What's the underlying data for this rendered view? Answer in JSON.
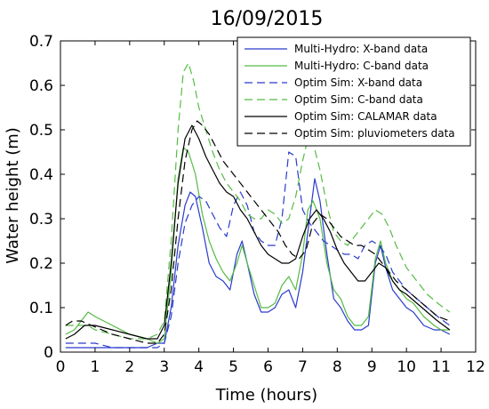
{
  "chart_data": {
    "type": "line",
    "title": "16/09/2015",
    "xlabel": "Time (hours)",
    "ylabel": "Water height (m)",
    "xlim": [
      0,
      12
    ],
    "ylim": [
      0,
      0.7
    ],
    "xticks": [
      "0",
      "1",
      "2",
      "3",
      "4",
      "5",
      "6",
      "7",
      "8",
      "9",
      "10",
      "11",
      "12"
    ],
    "yticks": [
      "0",
      "0.1",
      "0.2",
      "0.3",
      "0.4",
      "0.5",
      "0.6",
      "0.7"
    ],
    "grid": false,
    "legend_position": "top-right",
    "series": [
      {
        "name": "Multi-Hydro: X-band data",
        "color": "#2a3bcc",
        "dash": "solid",
        "x": [
          0.15,
          0.4,
          0.6,
          0.8,
          1.0,
          1.5,
          2.0,
          2.5,
          2.8,
          3.0,
          3.2,
          3.4,
          3.6,
          3.75,
          3.9,
          4.1,
          4.3,
          4.5,
          4.7,
          4.9,
          5.1,
          5.25,
          5.4,
          5.6,
          5.8,
          6.0,
          6.2,
          6.4,
          6.6,
          6.8,
          7.0,
          7.2,
          7.35,
          7.5,
          7.7,
          7.9,
          8.1,
          8.3,
          8.5,
          8.7,
          8.9,
          9.1,
          9.25,
          9.4,
          9.6,
          9.8,
          10.0,
          10.2,
          10.5,
          10.8,
          11.0,
          11.25
        ],
        "y": [
          0.01,
          0.01,
          0.01,
          0.01,
          0.01,
          0.01,
          0.01,
          0.01,
          0.02,
          0.02,
          0.1,
          0.24,
          0.33,
          0.36,
          0.35,
          0.28,
          0.2,
          0.17,
          0.16,
          0.14,
          0.22,
          0.25,
          0.2,
          0.13,
          0.09,
          0.09,
          0.1,
          0.13,
          0.14,
          0.1,
          0.18,
          0.3,
          0.39,
          0.34,
          0.22,
          0.12,
          0.1,
          0.07,
          0.05,
          0.05,
          0.06,
          0.2,
          0.24,
          0.19,
          0.14,
          0.12,
          0.1,
          0.09,
          0.06,
          0.05,
          0.05,
          0.04
        ]
      },
      {
        "name": "Multi-Hydro: C-band data",
        "color": "#55bb44",
        "dash": "solid",
        "x": [
          0.15,
          0.4,
          0.6,
          0.8,
          1.0,
          1.5,
          2.0,
          2.5,
          2.8,
          3.0,
          3.2,
          3.4,
          3.55,
          3.7,
          3.9,
          4.1,
          4.3,
          4.5,
          4.7,
          4.9,
          5.1,
          5.25,
          5.4,
          5.6,
          5.8,
          6.0,
          6.2,
          6.4,
          6.6,
          6.8,
          7.0,
          7.15,
          7.3,
          7.5,
          7.7,
          7.9,
          8.1,
          8.3,
          8.5,
          8.7,
          8.9,
          9.1,
          9.25,
          9.4,
          9.6,
          9.8,
          10.0,
          10.2,
          10.5,
          10.8,
          11.0,
          11.25
        ],
        "y": [
          0.04,
          0.05,
          0.07,
          0.09,
          0.08,
          0.06,
          0.04,
          0.03,
          0.02,
          0.03,
          0.18,
          0.39,
          0.46,
          0.45,
          0.4,
          0.31,
          0.25,
          0.21,
          0.18,
          0.16,
          0.2,
          0.24,
          0.2,
          0.15,
          0.1,
          0.1,
          0.11,
          0.15,
          0.17,
          0.14,
          0.22,
          0.32,
          0.34,
          0.3,
          0.2,
          0.14,
          0.12,
          0.08,
          0.06,
          0.06,
          0.08,
          0.21,
          0.25,
          0.2,
          0.16,
          0.14,
          0.12,
          0.11,
          0.08,
          0.06,
          0.05,
          0.05
        ]
      },
      {
        "name": "Optim Sim: X-band data",
        "color": "#2a3bcc",
        "dash": "dashed",
        "x": [
          0.15,
          0.4,
          0.8,
          1.0,
          1.5,
          2.0,
          2.5,
          2.8,
          3.0,
          3.2,
          3.4,
          3.6,
          3.8,
          4.0,
          4.2,
          4.4,
          4.6,
          4.8,
          5.0,
          5.2,
          5.4,
          5.6,
          5.8,
          6.0,
          6.2,
          6.4,
          6.6,
          6.8,
          7.0,
          7.2,
          7.4,
          7.6,
          7.8,
          8.0,
          8.2,
          8.4,
          8.6,
          8.8,
          9.0,
          9.2,
          9.4,
          9.6,
          9.8,
          10.0,
          10.3,
          10.6,
          10.9,
          11.25
        ],
        "y": [
          0.02,
          0.02,
          0.02,
          0.02,
          0.01,
          0.01,
          0.01,
          0.01,
          0.02,
          0.08,
          0.2,
          0.29,
          0.33,
          0.35,
          0.34,
          0.31,
          0.28,
          0.26,
          0.33,
          0.36,
          0.33,
          0.27,
          0.25,
          0.24,
          0.24,
          0.3,
          0.45,
          0.44,
          0.32,
          0.29,
          0.27,
          0.25,
          0.24,
          0.23,
          0.22,
          0.22,
          0.21,
          0.24,
          0.25,
          0.24,
          0.22,
          0.18,
          0.16,
          0.14,
          0.12,
          0.1,
          0.08,
          0.06
        ]
      },
      {
        "name": "Optim Sim: C-band data",
        "color": "#55bb44",
        "dash": "dashed",
        "x": [
          0.15,
          0.4,
          0.8,
          1.0,
          1.5,
          2.0,
          2.5,
          2.8,
          3.0,
          3.2,
          3.4,
          3.55,
          3.7,
          3.85,
          4.0,
          4.2,
          4.4,
          4.6,
          4.8,
          5.0,
          5.2,
          5.4,
          5.6,
          5.8,
          6.0,
          6.2,
          6.4,
          6.6,
          6.8,
          7.0,
          7.15,
          7.3,
          7.5,
          7.7,
          7.9,
          8.1,
          8.3,
          8.5,
          8.7,
          8.9,
          9.1,
          9.3,
          9.5,
          9.7,
          10.0,
          10.3,
          10.6,
          10.9,
          11.25
        ],
        "y": [
          0.06,
          0.06,
          0.06,
          0.05,
          0.04,
          0.03,
          0.03,
          0.04,
          0.07,
          0.25,
          0.5,
          0.63,
          0.65,
          0.61,
          0.55,
          0.5,
          0.45,
          0.41,
          0.38,
          0.36,
          0.34,
          0.31,
          0.3,
          0.3,
          0.32,
          0.31,
          0.29,
          0.3,
          0.35,
          0.43,
          0.48,
          0.47,
          0.41,
          0.33,
          0.27,
          0.25,
          0.24,
          0.26,
          0.28,
          0.3,
          0.32,
          0.31,
          0.28,
          0.24,
          0.19,
          0.16,
          0.13,
          0.11,
          0.09
        ]
      },
      {
        "name": "Optim Sim: CALAMAR data",
        "color": "#000000",
        "dash": "solid",
        "x": [
          0.15,
          0.4,
          0.7,
          1.0,
          1.5,
          2.0,
          2.5,
          2.8,
          3.0,
          3.2,
          3.4,
          3.6,
          3.8,
          4.0,
          4.2,
          4.4,
          4.6,
          4.8,
          5.0,
          5.2,
          5.4,
          5.6,
          5.8,
          6.0,
          6.2,
          6.4,
          6.6,
          6.8,
          7.0,
          7.2,
          7.4,
          7.6,
          7.8,
          8.0,
          8.2,
          8.4,
          8.6,
          8.8,
          9.0,
          9.2,
          9.4,
          9.6,
          9.8,
          10.0,
          10.3,
          10.6,
          10.9,
          11.25
        ],
        "y": [
          0.03,
          0.04,
          0.06,
          0.06,
          0.05,
          0.04,
          0.03,
          0.03,
          0.06,
          0.2,
          0.38,
          0.48,
          0.51,
          0.48,
          0.44,
          0.41,
          0.38,
          0.36,
          0.35,
          0.32,
          0.3,
          0.27,
          0.24,
          0.22,
          0.21,
          0.2,
          0.2,
          0.21,
          0.26,
          0.3,
          0.32,
          0.3,
          0.27,
          0.23,
          0.2,
          0.18,
          0.16,
          0.16,
          0.18,
          0.2,
          0.19,
          0.16,
          0.14,
          0.13,
          0.11,
          0.09,
          0.07,
          0.05
        ]
      },
      {
        "name": "Optim Sim: pluviometers data",
        "color": "#000000",
        "dash": "dashed",
        "x": [
          0.15,
          0.35,
          0.6,
          0.9,
          1.2,
          1.5,
          2.0,
          2.5,
          2.8,
          3.0,
          3.2,
          3.4,
          3.6,
          3.8,
          3.95,
          4.1,
          4.3,
          4.5,
          4.7,
          4.9,
          5.1,
          5.3,
          5.5,
          5.7,
          5.9,
          6.1,
          6.3,
          6.5,
          6.7,
          6.9,
          7.1,
          7.3,
          7.5,
          7.7,
          7.9,
          8.1,
          8.3,
          8.5,
          8.7,
          8.9,
          9.1,
          9.3,
          9.5,
          9.7,
          10.0,
          10.3,
          10.6,
          10.9,
          11.25
        ],
        "y": [
          0.06,
          0.07,
          0.07,
          0.06,
          0.05,
          0.04,
          0.03,
          0.02,
          0.02,
          0.04,
          0.14,
          0.3,
          0.43,
          0.5,
          0.52,
          0.51,
          0.49,
          0.46,
          0.43,
          0.41,
          0.39,
          0.37,
          0.35,
          0.33,
          0.31,
          0.29,
          0.27,
          0.24,
          0.22,
          0.21,
          0.23,
          0.29,
          0.31,
          0.3,
          0.28,
          0.26,
          0.25,
          0.24,
          0.24,
          0.23,
          0.22,
          0.2,
          0.18,
          0.16,
          0.14,
          0.12,
          0.1,
          0.08,
          0.07
        ]
      }
    ]
  }
}
